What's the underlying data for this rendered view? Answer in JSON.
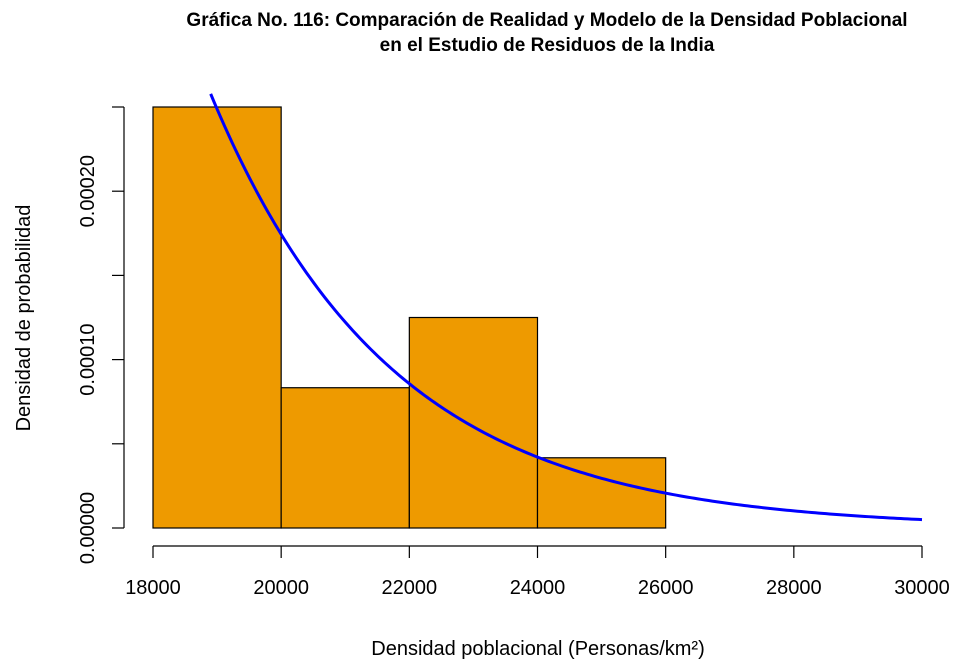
{
  "chart_data": {
    "type": "bar",
    "title_line1": "Gráfica No. 116: Comparación de Realidad y Modelo de la Densidad Poblacional",
    "title_line2": "en el Estudio de Residuos de la India",
    "xlabel": "Densidad poblacional (Personas/km²)",
    "ylabel": "Densidad de probabilidad",
    "xlim": [
      18000,
      30000
    ],
    "ylim": [
      0,
      0.00025
    ],
    "x_ticks": [
      18000,
      20000,
      22000,
      24000,
      26000,
      28000,
      30000
    ],
    "x_tick_labels": [
      "18000",
      "20000",
      "22000",
      "24000",
      "26000",
      "28000",
      "30000"
    ],
    "y_ticks": [
      0,
      5e-05,
      0.0001,
      0.00015,
      0.0002,
      0.00025
    ],
    "y_tick_labels": [
      "0.00000",
      "",
      "0.00010",
      "",
      "0.00020",
      ""
    ],
    "histogram": {
      "bins": [
        [
          18000,
          20000
        ],
        [
          20000,
          22000
        ],
        [
          22000,
          24000
        ],
        [
          24000,
          26000
        ]
      ],
      "densities": [
        0.00025,
        8.33e-05,
        0.000125,
        4.17e-05
      ],
      "fill": "#EE9A00",
      "stroke": "#000000"
    },
    "curve": {
      "model": "exponential",
      "color": "#0000FF",
      "x_start": 18900,
      "x_end": 30000,
      "points": [
        [
          18900,
          0.000262
        ],
        [
          20000,
          0.000175
        ],
        [
          21000,
          0.000121
        ],
        [
          22000,
          8.55e-05
        ],
        [
          23000,
          5.95e-05
        ],
        [
          24000,
          4.2e-05
        ],
        [
          25000,
          2.95e-05
        ],
        [
          26000,
          2.05e-05
        ],
        [
          27000,
          1.45e-05
        ],
        [
          28000,
          1.02e-05
        ],
        [
          29000,
          7.2e-06
        ],
        [
          30000,
          5e-06
        ]
      ]
    },
    "grid": false,
    "legend": "none"
  }
}
